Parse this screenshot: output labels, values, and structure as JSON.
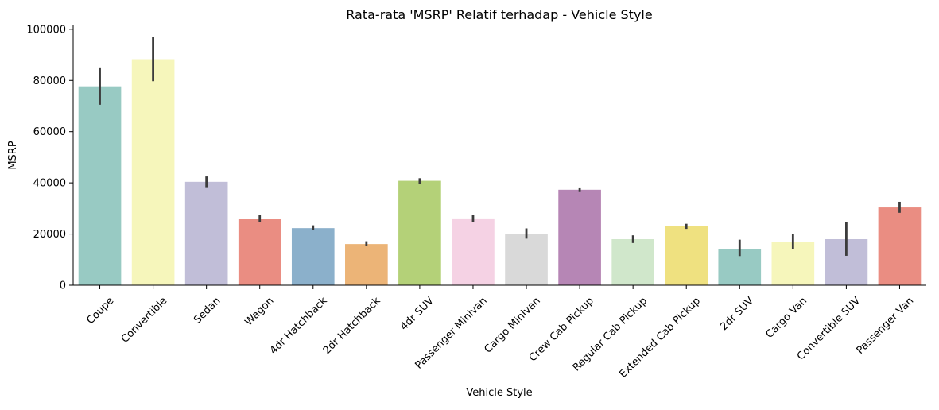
{
  "chart_data": {
    "type": "bar",
    "title": "Rata-rata 'MSRP' Relatif terhadap - Vehicle Style",
    "xlabel": "Vehicle Style",
    "ylabel": "MSRP",
    "ylim": [
      0,
      101500
    ],
    "yticks": [
      0,
      20000,
      40000,
      60000,
      80000,
      100000
    ],
    "ytick_labels": [
      "0",
      "20000",
      "40000",
      "60000",
      "80000",
      "100000"
    ],
    "grid": false,
    "categories": [
      "Coupe",
      "Convertible",
      "Sedan",
      "Wagon",
      "4dr Hatchback",
      "2dr Hatchback",
      "4dr SUV",
      "Passenger Minivan",
      "Cargo Minivan",
      "Crew Cab Pickup",
      "Regular Cab Pickup",
      "Extended Cab Pickup",
      "2dr SUV",
      "Cargo Van",
      "Convertible SUV",
      "Passenger Van"
    ],
    "values": [
      77700,
      88300,
      40400,
      26000,
      22300,
      16100,
      40800,
      26100,
      20100,
      37300,
      18000,
      23000,
      14200,
      17000,
      18000,
      30400
    ],
    "error_low": [
      70500,
      79700,
      38300,
      24600,
      21500,
      15300,
      39700,
      24800,
      18200,
      36400,
      16500,
      22000,
      11400,
      14100,
      11500,
      28300
    ],
    "error_high": [
      85100,
      97000,
      42500,
      27600,
      23400,
      17200,
      41800,
      27500,
      22200,
      38200,
      19500,
      24000,
      17800,
      20000,
      24600,
      32600
    ],
    "colors": [
      "#98cac3",
      "#f6f6bb",
      "#c1bed8",
      "#ea8d82",
      "#8bb0cb",
      "#ecb477",
      "#b4d178",
      "#f5d2e4",
      "#d9d9d9",
      "#b686b5",
      "#d0e7cb",
      "#efe180",
      "#98cac3",
      "#f6f6bb",
      "#c1bed8",
      "#ea8d82"
    ]
  }
}
